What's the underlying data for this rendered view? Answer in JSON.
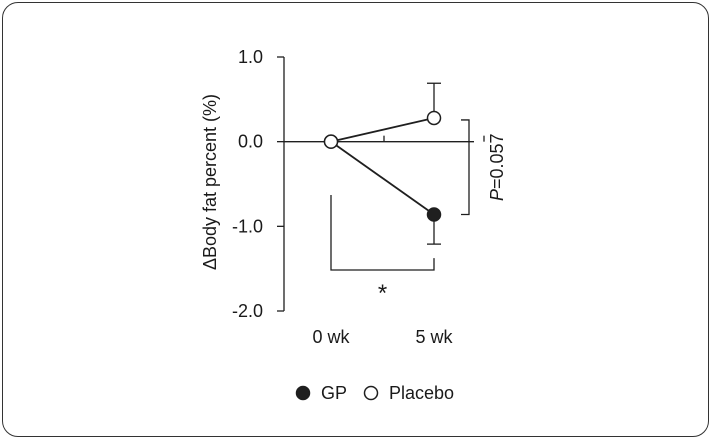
{
  "chart_data": {
    "type": "line",
    "ylabel": "ΔBody fat percent (%)",
    "categories": [
      "0 wk",
      "5 wk"
    ],
    "ylim": [
      -2.0,
      1.0
    ],
    "yticks": [
      1.0,
      0.0,
      -1.0,
      -2.0
    ],
    "ytick_labels": [
      "1.0",
      "0.0",
      "-1.0",
      "-2.0"
    ],
    "series": [
      {
        "name": "GP",
        "marker": "filled",
        "color": "#1f1f1f",
        "values": [
          0.0,
          -0.86
        ],
        "error_low": [
          null,
          -1.21
        ],
        "error_high": [
          null,
          null
        ]
      },
      {
        "name": "Placebo",
        "marker": "open",
        "color": "#1f1f1f",
        "values": [
          0.0,
          0.28
        ],
        "error_low": [
          null,
          null
        ],
        "error_high": [
          null,
          0.69
        ]
      }
    ],
    "annotations": {
      "p_value_prefix": "P",
      "p_value_rest": "=0.057",
      "significance": "*"
    },
    "legend": {
      "position": "bottom",
      "items": [
        "GP",
        "Placebo"
      ]
    },
    "grid": false
  }
}
